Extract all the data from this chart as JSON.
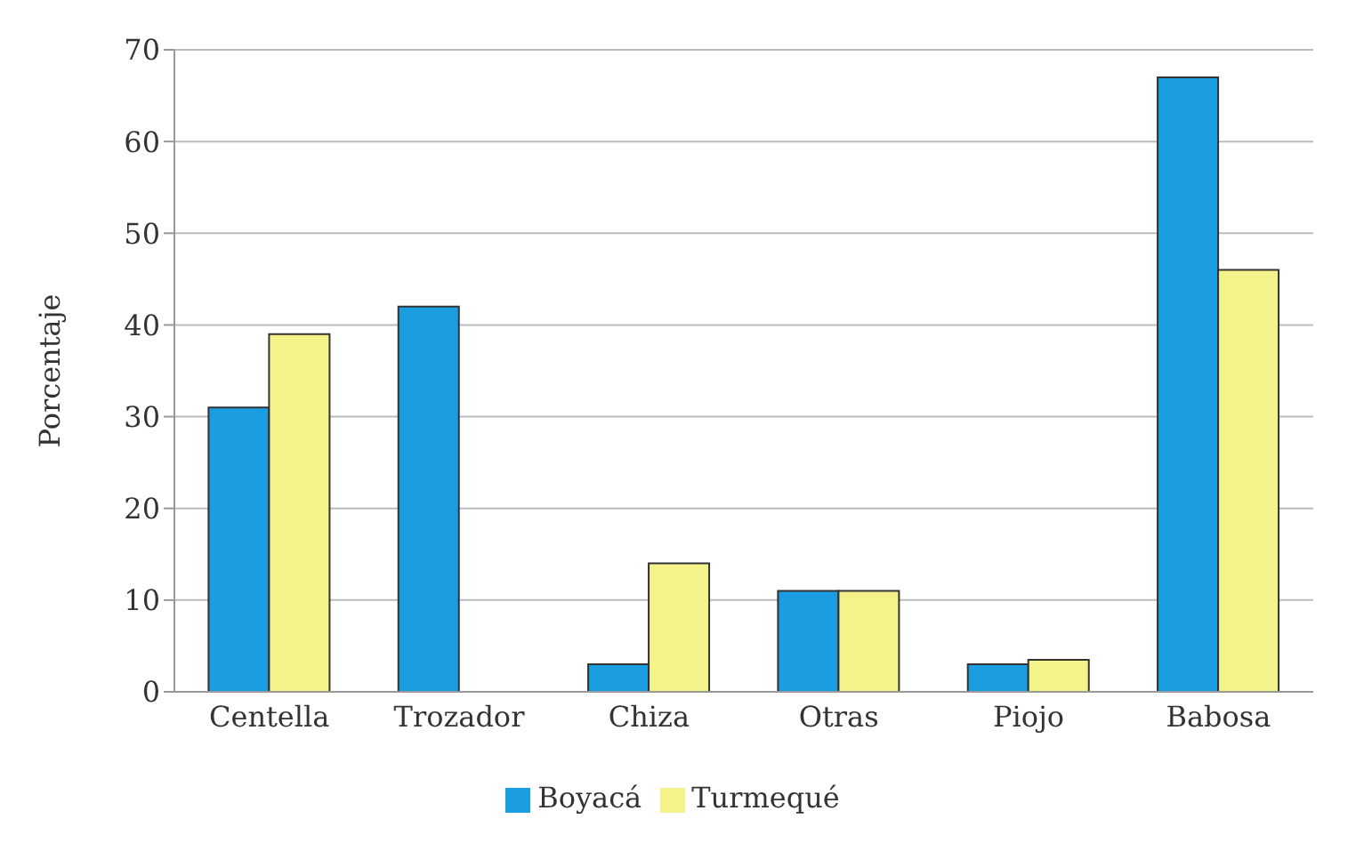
{
  "chart_data": {
    "type": "bar",
    "ylabel": "Porcentaje",
    "categories": [
      "Centella",
      "Trozador",
      "Chiza",
      "Otras",
      "Piojo",
      "Babosa"
    ],
    "series": [
      {
        "name": "Boyacá",
        "color": "#1b9de2",
        "values": [
          31,
          42,
          3,
          11,
          3,
          67
        ]
      },
      {
        "name": "Turmequé",
        "color": "#f4f38a",
        "values": [
          39,
          null,
          14,
          11,
          3.5,
          46
        ]
      }
    ],
    "ylim": [
      0,
      70
    ],
    "yticks": [
      0,
      10,
      20,
      30,
      40,
      50,
      60,
      70
    ],
    "grid": "y",
    "legend": "bottom"
  }
}
